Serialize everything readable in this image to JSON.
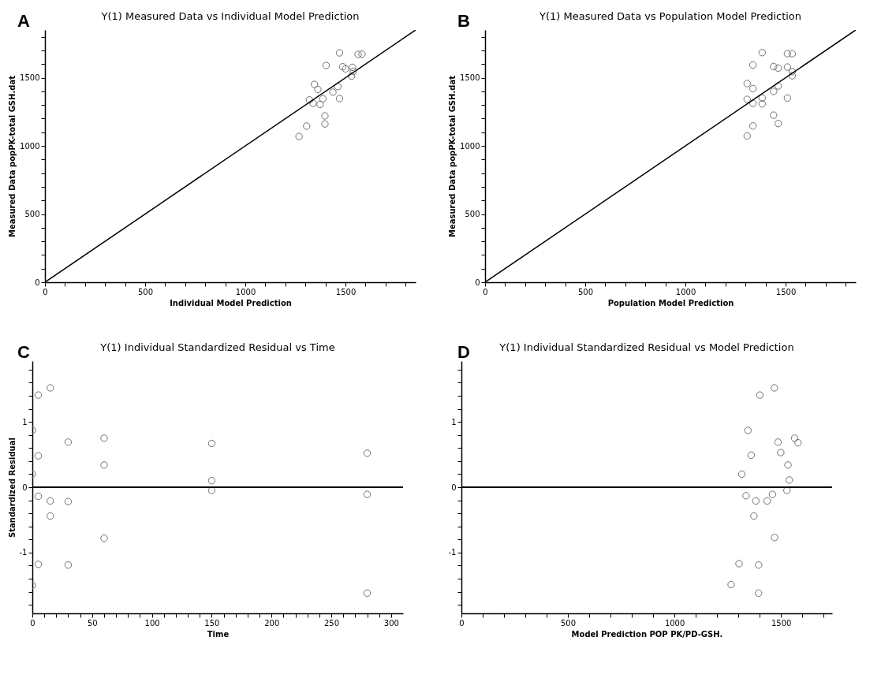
{
  "chart_data": [
    {
      "type": "scatter",
      "title": "Y(1) Measured Data vs Individual Model Prediction",
      "xlabel": "Individual Model Prediction",
      "ylabel": "Measured Data   popPK-total GSH.dat",
      "annotations": [
        "A"
      ],
      "marker": "circle",
      "grid": false,
      "xlim": [
        0,
        1850
      ],
      "ylim": [
        0,
        1850
      ],
      "xticks": [
        0,
        {
          "value": 100,
          "label": null
        },
        {
          "value": 200,
          "label": null
        },
        {
          "value": 300,
          "label": null
        },
        {
          "value": 400,
          "label": null
        },
        500,
        {
          "value": 600,
          "label": null
        },
        {
          "value": 700,
          "label": null
        },
        {
          "value": 800,
          "label": null
        },
        {
          "value": 900,
          "label": null
        },
        1000,
        {
          "value": 1100,
          "label": null
        },
        {
          "value": 1200,
          "label": null
        },
        {
          "value": 1300,
          "label": null
        },
        {
          "value": 1400,
          "label": null
        },
        1500,
        {
          "value": 1600,
          "label": null
        },
        {
          "value": 1700,
          "label": null
        },
        {
          "value": 1800,
          "label": null
        }
      ],
      "yticks": [
        0,
        {
          "value": 100,
          "label": null
        },
        {
          "value": 200,
          "label": null
        },
        {
          "value": 300,
          "label": null
        },
        {
          "value": 400,
          "label": null
        },
        500,
        {
          "value": 600,
          "label": null
        },
        {
          "value": 700,
          "label": null
        },
        {
          "value": 800,
          "label": null
        },
        {
          "value": 900,
          "label": null
        },
        1000,
        {
          "value": 1100,
          "label": null
        },
        {
          "value": 1200,
          "label": null
        },
        {
          "value": 1300,
          "label": null
        },
        {
          "value": 1400,
          "label": null
        },
        1500,
        {
          "value": 1600,
          "label": null
        },
        {
          "value": 1700,
          "label": null
        },
        {
          "value": 1800,
          "label": null
        }
      ],
      "series": [
        {
          "color": "#707070",
          "x": [
            1268,
            1306,
            1320,
            1338,
            1345,
            1362,
            1373,
            1387,
            1397,
            1397,
            1403,
            1437,
            1462,
            1470,
            1470,
            1486,
            1500,
            1535,
            1539,
            1530,
            1563,
            1582
          ],
          "values": [
            1069,
            1145,
            1337,
            1312,
            1451,
            1414,
            1304,
            1345,
            1220,
            1161,
            1590,
            1394,
            1435,
            1347,
            1682,
            1580,
            1565,
            1576,
            1547,
            1512,
            1671,
            1673
          ]
        },
        {
          "type": "line",
          "color": "#000000",
          "line_style": "solid",
          "marker": "none",
          "x": [
            0,
            1850
          ],
          "values": [
            0,
            1850
          ]
        }
      ]
    },
    {
      "type": "scatter",
      "title": "Y(1) Measured Data vs Population Model Prediction",
      "xlabel": "Population Model Prediction",
      "ylabel": "Measured Data   popPK-total GSH.dat",
      "annotations": [
        "B"
      ],
      "marker": "circle",
      "grid": false,
      "xlim": [
        0,
        1850
      ],
      "ylim": [
        0,
        1850
      ],
      "xticks": [
        0,
        {
          "value": 100,
          "label": null
        },
        {
          "value": 200,
          "label": null
        },
        {
          "value": 300,
          "label": null
        },
        {
          "value": 400,
          "label": null
        },
        500,
        {
          "value": 600,
          "label": null
        },
        {
          "value": 700,
          "label": null
        },
        {
          "value": 800,
          "label": null
        },
        {
          "value": 900,
          "label": null
        },
        1000,
        {
          "value": 1100,
          "label": null
        },
        {
          "value": 1200,
          "label": null
        },
        {
          "value": 1300,
          "label": null
        },
        {
          "value": 1400,
          "label": null
        },
        1500,
        {
          "value": 1600,
          "label": null
        },
        {
          "value": 1700,
          "label": null
        },
        {
          "value": 1800,
          "label": null
        }
      ],
      "yticks": [
        0,
        {
          "value": 100,
          "label": null
        },
        {
          "value": 200,
          "label": null
        },
        {
          "value": 300,
          "label": null
        },
        {
          "value": 400,
          "label": null
        },
        500,
        {
          "value": 600,
          "label": null
        },
        {
          "value": 700,
          "label": null
        },
        {
          "value": 800,
          "label": null
        },
        {
          "value": 900,
          "label": null
        },
        1000,
        {
          "value": 1100,
          "label": null
        },
        {
          "value": 1200,
          "label": null
        },
        {
          "value": 1300,
          "label": null
        },
        {
          "value": 1400,
          "label": null
        },
        1500,
        {
          "value": 1600,
          "label": null
        },
        {
          "value": 1700,
          "label": null
        },
        {
          "value": 1800,
          "label": null
        }
      ],
      "series": [
        {
          "color": "#707070",
          "x": [
            1308,
            1337,
            1308,
            1337,
            1308,
            1337,
            1337,
            1383,
            1383,
            1383,
            1440,
            1463,
            1440,
            1463,
            1440,
            1463,
            1509,
            1509,
            1509,
            1533,
            1533,
            1533
          ],
          "values": [
            1073,
            1146,
            1341,
            1312,
            1457,
            1420,
            1593,
            1684,
            1351,
            1308,
            1225,
            1164,
            1399,
            1439,
            1582,
            1570,
            1351,
            1578,
            1676,
            1676,
            1545,
            1514
          ]
        },
        {
          "type": "line",
          "color": "#000000",
          "line_style": "solid",
          "marker": "none",
          "x": [
            0,
            1850
          ],
          "values": [
            0,
            1850
          ]
        }
      ]
    },
    {
      "type": "scatter",
      "title": "Y(1) Individual Standardized Residual vs Time",
      "xlabel": "Time",
      "ylabel": "Standardized Residual",
      "annotations": [
        "C"
      ],
      "marker": "circle",
      "grid": false,
      "xlim": [
        0,
        310
      ],
      "ylim": [
        -1.93,
        1.93
      ],
      "xticks": [
        0,
        {
          "value": 10,
          "label": null
        },
        {
          "value": 20,
          "label": null
        },
        {
          "value": 30,
          "label": null
        },
        {
          "value": 40,
          "label": null
        },
        50,
        {
          "value": 60,
          "label": null
        },
        {
          "value": 70,
          "label": null
        },
        {
          "value": 80,
          "label": null
        },
        {
          "value": 90,
          "label": null
        },
        100,
        {
          "value": 110,
          "label": null
        },
        {
          "value": 120,
          "label": null
        },
        {
          "value": 130,
          "label": null
        },
        {
          "value": 140,
          "label": null
        },
        150,
        {
          "value": 160,
          "label": null
        },
        {
          "value": 170,
          "label": null
        },
        {
          "value": 180,
          "label": null
        },
        {
          "value": 190,
          "label": null
        },
        200,
        {
          "value": 210,
          "label": null
        },
        {
          "value": 220,
          "label": null
        },
        {
          "value": 230,
          "label": null
        },
        {
          "value": 240,
          "label": null
        },
        250,
        {
          "value": 260,
          "label": null
        },
        {
          "value": 270,
          "label": null
        },
        {
          "value": 280,
          "label": null
        },
        {
          "value": 290,
          "label": null
        },
        300
      ],
      "yticks": [
        {
          "value": -1.8,
          "label": null
        },
        {
          "value": -1.6,
          "label": null
        },
        {
          "value": -1.4,
          "label": null
        },
        {
          "value": -1.2,
          "label": null
        },
        -1,
        {
          "value": -0.8,
          "label": null
        },
        {
          "value": -0.6,
          "label": null
        },
        {
          "value": -0.4,
          "label": null
        },
        {
          "value": -0.2,
          "label": null
        },
        0,
        {
          "value": 0.2,
          "label": null
        },
        {
          "value": 0.4,
          "label": null
        },
        {
          "value": 0.6,
          "label": null
        },
        {
          "value": 0.8,
          "label": null
        },
        1,
        {
          "value": 1.2,
          "label": null
        },
        {
          "value": 1.4,
          "label": null
        },
        {
          "value": 1.6,
          "label": null
        },
        {
          "value": 1.8,
          "label": null
        }
      ],
      "ref_lines": [
        {
          "axis": "y",
          "value": 0,
          "color": "#000000"
        }
      ],
      "series": [
        {
          "color": "#707070",
          "x": [
            0,
            0,
            0,
            5,
            5,
            5,
            5,
            15,
            15,
            15,
            30,
            30,
            30,
            60,
            60,
            60,
            150,
            150,
            150,
            280,
            280,
            280
          ],
          "values": [
            0.87,
            0.2,
            -1.5,
            1.41,
            0.48,
            -0.14,
            -1.18,
            1.52,
            -0.21,
            -0.44,
            0.69,
            -0.22,
            -1.19,
            0.75,
            0.34,
            -0.78,
            0.67,
            0.1,
            -0.05,
            0.52,
            -0.11,
            -1.62
          ]
        }
      ]
    },
    {
      "type": "scatter",
      "title": "Y(1) Individual Standardized Residual vs Model Prediction",
      "xlabel": "Model Prediction   POP PK/PD-GSH.",
      "annotations": [
        "D"
      ],
      "marker": "circle",
      "grid": false,
      "xlim": [
        0,
        1740
      ],
      "ylim": [
        -1.93,
        1.93
      ],
      "xticks": [
        0,
        {
          "value": 100,
          "label": null
        },
        {
          "value": 200,
          "label": null
        },
        {
          "value": 300,
          "label": null
        },
        {
          "value": 400,
          "label": null
        },
        500,
        {
          "value": 600,
          "label": null
        },
        {
          "value": 700,
          "label": null
        },
        {
          "value": 800,
          "label": null
        },
        {
          "value": 900,
          "label": null
        },
        1000,
        {
          "value": 1100,
          "label": null
        },
        {
          "value": 1200,
          "label": null
        },
        {
          "value": 1300,
          "label": null
        },
        {
          "value": 1400,
          "label": null
        },
        1500,
        {
          "value": 1600,
          "label": null
        },
        {
          "value": 1700,
          "label": null
        }
      ],
      "yticks": [
        {
          "value": -1.8,
          "label": null
        },
        {
          "value": -1.6,
          "label": null
        },
        {
          "value": -1.4,
          "label": null
        },
        {
          "value": -1.2,
          "label": null
        },
        -1,
        {
          "value": -0.8,
          "label": null
        },
        {
          "value": -0.6,
          "label": null
        },
        {
          "value": -0.4,
          "label": null
        },
        {
          "value": -0.2,
          "label": null
        },
        0,
        {
          "value": 0.2,
          "label": null
        },
        {
          "value": 0.4,
          "label": null
        },
        {
          "value": 0.6,
          "label": null
        },
        {
          "value": 0.8,
          "label": null
        },
        1,
        {
          "value": 1.2,
          "label": null
        },
        {
          "value": 1.4,
          "label": null
        },
        {
          "value": 1.6,
          "label": null
        },
        {
          "value": 1.8,
          "label": null
        }
      ],
      "ref_lines": [
        {
          "axis": "y",
          "value": 0,
          "color": "#000000"
        }
      ],
      "series": [
        {
          "color": "#707070",
          "x": [
            1469,
            1401,
            1345,
            1564,
            1580,
            1486,
            1499,
            1360,
            1533,
            1316,
            1539,
            1528,
            1336,
            1460,
            1382,
            1435,
            1373,
            1470,
            1303,
            1395,
            1266,
            1395
          ],
          "values": [
            1.52,
            1.41,
            0.87,
            0.75,
            0.68,
            0.69,
            0.53,
            0.49,
            0.34,
            0.2,
            0.11,
            -0.05,
            -0.13,
            -0.11,
            -0.21,
            -0.21,
            -0.44,
            -0.77,
            -1.17,
            -1.19,
            -1.49,
            -1.62
          ]
        }
      ]
    }
  ]
}
